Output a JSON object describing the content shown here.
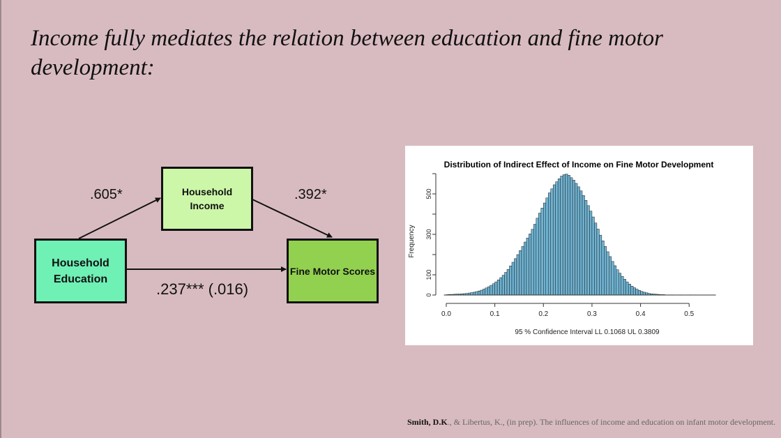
{
  "slide": {
    "title": "Income fully mediates the relation between education and fine motor development:"
  },
  "diagram": {
    "nodes": {
      "income": [
        "Household",
        "Income"
      ],
      "education": [
        "Household",
        "Education"
      ],
      "motor": "Fine Motor Scores"
    },
    "paths": {
      "education_to_income": ".605*",
      "income_to_motor": ".392*",
      "education_to_motor": ".237*** (.016)"
    }
  },
  "colors": {
    "background": "#d8bbc0",
    "income_box": "#ccf7a8",
    "education_box": "#6ff0b5",
    "motor_box": "#92d150",
    "bars": "#6fb3d2"
  },
  "chart_data": {
    "type": "bar",
    "title": "Distribution of Indirect Effect of Income on Fine Motor Development",
    "xlabel": "95 % Confidence Interval  LL 0.1068   UL 0.3809",
    "ylabel": "Frequency",
    "xlim": [
      -0.01,
      0.57
    ],
    "ylim": [
      0,
      600
    ],
    "xticks": [
      "0.0",
      "0.1",
      "0.2",
      "0.3",
      "0.4",
      "0.5"
    ],
    "yticks": [
      "0",
      "100",
      "300",
      "500"
    ],
    "bin_start": 0.0,
    "bin_width": 0.005,
    "values": [
      2,
      3,
      3,
      4,
      5,
      5,
      6,
      7,
      8,
      10,
      12,
      14,
      17,
      20,
      24,
      29,
      35,
      41,
      48,
      56,
      65,
      75,
      86,
      98,
      112,
      127,
      144,
      162,
      180,
      200,
      220,
      240,
      262,
      282,
      302,
      325,
      350,
      380,
      405,
      430,
      455,
      480,
      505,
      525,
      545,
      560,
      575,
      588,
      595,
      598,
      592,
      580,
      568,
      552,
      535,
      515,
      492,
      468,
      442,
      415,
      386,
      356,
      326,
      296,
      268,
      240,
      214,
      190,
      166,
      145,
      125,
      108,
      92,
      78,
      65,
      54,
      44,
      36,
      29,
      23,
      18,
      14,
      11,
      8,
      6,
      5,
      4,
      3,
      2,
      2,
      1,
      1,
      1,
      1,
      0,
      0,
      1,
      0,
      0,
      0,
      1
    ]
  },
  "citation": {
    "authors_bold": "Smith, D.K",
    "rest": "., & Libertus, K., (in prep). The influences of  income and education on infant motor development."
  }
}
